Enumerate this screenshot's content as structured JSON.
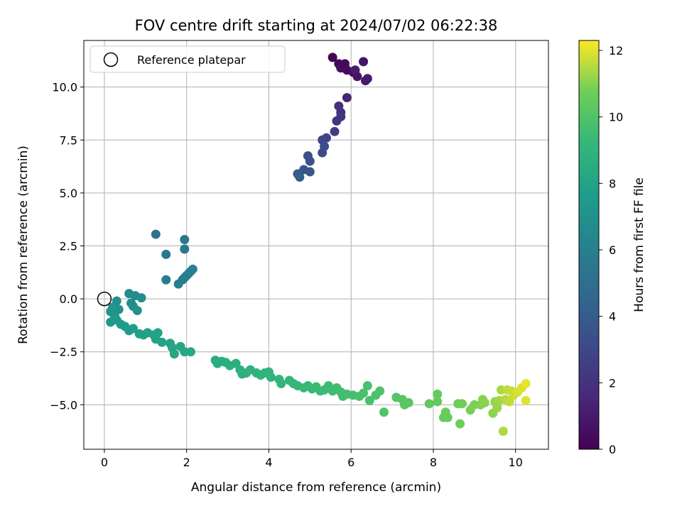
{
  "chart_data": {
    "type": "scatter",
    "title": "FOV centre drift starting at 2024/07/02 06:22:38",
    "xlabel": "Angular distance from reference (arcmin)",
    "ylabel": "Rotation from reference (arcmin)",
    "xlim": [
      -0.5,
      10.8
    ],
    "ylim": [
      -7.1,
      12.2
    ],
    "x_ticks": [
      0,
      2,
      4,
      6,
      8,
      10
    ],
    "y_ticks": [
      -5.0,
      -2.5,
      0.0,
      2.5,
      5.0,
      7.5,
      10.0
    ],
    "x_tick_labels": [
      "0",
      "2",
      "4",
      "6",
      "8",
      "10"
    ],
    "y_tick_labels": [
      "−5.0",
      "−2.5",
      "0.0",
      "2.5",
      "5.0",
      "7.5",
      "10.0"
    ],
    "grid": true,
    "legend": {
      "position": "top-left",
      "entries": [
        "Reference platepar"
      ]
    },
    "reference_point": {
      "x": 0,
      "y": 0
    },
    "colorbar": {
      "label": "Hours from first FF file",
      "colormap": "viridis",
      "range": [
        0,
        12.3
      ],
      "ticks": [
        0,
        2,
        4,
        6,
        8,
        10,
        12
      ],
      "tick_labels": [
        "0",
        "2",
        "4",
        "6",
        "8",
        "10",
        "12"
      ]
    },
    "points": [
      {
        "x": 5.55,
        "y": 11.4,
        "t": 0.1
      },
      {
        "x": 5.7,
        "y": 11.1,
        "t": 0.2
      },
      {
        "x": 5.8,
        "y": 11.0,
        "t": 0.3
      },
      {
        "x": 5.9,
        "y": 10.8,
        "t": 0.4
      },
      {
        "x": 5.75,
        "y": 10.9,
        "t": 0.5
      },
      {
        "x": 6.05,
        "y": 10.7,
        "t": 0.6
      },
      {
        "x": 6.15,
        "y": 10.5,
        "t": 0.7
      },
      {
        "x": 6.3,
        "y": 11.2,
        "t": 0.8
      },
      {
        "x": 6.35,
        "y": 10.3,
        "t": 0.9
      },
      {
        "x": 6.4,
        "y": 10.4,
        "t": 1.0
      },
      {
        "x": 6.1,
        "y": 10.8,
        "t": 1.0
      },
      {
        "x": 5.85,
        "y": 11.1,
        "t": 0.3
      },
      {
        "x": 5.9,
        "y": 9.5,
        "t": 1.4
      },
      {
        "x": 5.75,
        "y": 8.8,
        "t": 1.8
      },
      {
        "x": 5.7,
        "y": 9.1,
        "t": 1.9
      },
      {
        "x": 5.65,
        "y": 8.4,
        "t": 2.2
      },
      {
        "x": 5.6,
        "y": 7.9,
        "t": 2.5
      },
      {
        "x": 5.75,
        "y": 8.6,
        "t": 2.1
      },
      {
        "x": 5.4,
        "y": 7.6,
        "t": 2.8
      },
      {
        "x": 5.3,
        "y": 7.5,
        "t": 3.0
      },
      {
        "x": 5.35,
        "y": 7.2,
        "t": 3.1
      },
      {
        "x": 5.3,
        "y": 6.9,
        "t": 3.2
      },
      {
        "x": 5.0,
        "y": 6.5,
        "t": 3.5
      },
      {
        "x": 4.95,
        "y": 6.75,
        "t": 3.4
      },
      {
        "x": 4.85,
        "y": 6.1,
        "t": 3.7
      },
      {
        "x": 5.0,
        "y": 6.0,
        "t": 3.8
      },
      {
        "x": 4.7,
        "y": 5.9,
        "t": 4.0
      },
      {
        "x": 4.75,
        "y": 5.75,
        "t": 4.1
      },
      {
        "x": 1.25,
        "y": 3.05,
        "t": 5.2
      },
      {
        "x": 1.5,
        "y": 2.1,
        "t": 5.4
      },
      {
        "x": 1.95,
        "y": 2.8,
        "t": 5.5
      },
      {
        "x": 1.95,
        "y": 2.35,
        "t": 5.6
      },
      {
        "x": 1.5,
        "y": 0.9,
        "t": 5.8
      },
      {
        "x": 1.8,
        "y": 0.7,
        "t": 5.9
      },
      {
        "x": 1.9,
        "y": 0.9,
        "t": 6.0
      },
      {
        "x": 2.0,
        "y": 1.1,
        "t": 6.1
      },
      {
        "x": 2.1,
        "y": 1.3,
        "t": 6.2
      },
      {
        "x": 2.15,
        "y": 1.4,
        "t": 6.2
      },
      {
        "x": 2.05,
        "y": 1.2,
        "t": 6.1
      },
      {
        "x": 1.95,
        "y": 1.0,
        "t": 6.0
      },
      {
        "x": 0.6,
        "y": 0.25,
        "t": 6.6
      },
      {
        "x": 0.75,
        "y": 0.15,
        "t": 6.7
      },
      {
        "x": 0.9,
        "y": 0.05,
        "t": 6.8
      },
      {
        "x": 0.7,
        "y": -0.35,
        "t": 6.8
      },
      {
        "x": 0.8,
        "y": -0.55,
        "t": 6.9
      },
      {
        "x": 0.65,
        "y": -0.2,
        "t": 6.75
      },
      {
        "x": 0.3,
        "y": -0.1,
        "t": 7.0
      },
      {
        "x": 0.35,
        "y": -0.5,
        "t": 7.1
      },
      {
        "x": 0.15,
        "y": -0.6,
        "t": 7.2
      },
      {
        "x": 0.25,
        "y": -0.8,
        "t": 7.3
      },
      {
        "x": 0.3,
        "y": -1.0,
        "t": 7.4
      },
      {
        "x": 0.15,
        "y": -1.1,
        "t": 7.4
      },
      {
        "x": 0.2,
        "y": -0.4,
        "t": 7.15
      },
      {
        "x": 0.4,
        "y": -1.2,
        "t": 7.5
      },
      {
        "x": 0.5,
        "y": -1.3,
        "t": 7.6
      },
      {
        "x": 0.6,
        "y": -1.5,
        "t": 7.7
      },
      {
        "x": 0.7,
        "y": -1.4,
        "t": 7.75
      },
      {
        "x": 0.85,
        "y": -1.65,
        "t": 7.8
      },
      {
        "x": 0.95,
        "y": -1.7,
        "t": 7.85
      },
      {
        "x": 1.05,
        "y": -1.6,
        "t": 7.9
      },
      {
        "x": 1.2,
        "y": -1.7,
        "t": 7.95
      },
      {
        "x": 1.25,
        "y": -1.9,
        "t": 8.0
      },
      {
        "x": 1.3,
        "y": -1.6,
        "t": 8.0
      },
      {
        "x": 1.4,
        "y": -2.05,
        "t": 8.05
      },
      {
        "x": 1.6,
        "y": -2.1,
        "t": 8.1
      },
      {
        "x": 1.65,
        "y": -2.3,
        "t": 8.1
      },
      {
        "x": 1.7,
        "y": -2.6,
        "t": 8.15
      },
      {
        "x": 1.85,
        "y": -2.25,
        "t": 8.2
      },
      {
        "x": 1.95,
        "y": -2.5,
        "t": 8.25
      },
      {
        "x": 2.1,
        "y": -2.5,
        "t": 8.3
      },
      {
        "x": 2.7,
        "y": -2.9,
        "t": 8.5
      },
      {
        "x": 2.75,
        "y": -3.05,
        "t": 8.55
      },
      {
        "x": 2.85,
        "y": -2.95,
        "t": 8.6
      },
      {
        "x": 2.95,
        "y": -3.0,
        "t": 8.6
      },
      {
        "x": 3.05,
        "y": -3.15,
        "t": 8.65
      },
      {
        "x": 3.2,
        "y": -3.05,
        "t": 8.7
      },
      {
        "x": 3.3,
        "y": -3.35,
        "t": 8.75
      },
      {
        "x": 3.35,
        "y": -3.55,
        "t": 8.8
      },
      {
        "x": 3.45,
        "y": -3.5,
        "t": 8.8
      },
      {
        "x": 3.55,
        "y": -3.35,
        "t": 8.85
      },
      {
        "x": 3.7,
        "y": -3.5,
        "t": 8.9
      },
      {
        "x": 3.8,
        "y": -3.6,
        "t": 8.9
      },
      {
        "x": 3.9,
        "y": -3.5,
        "t": 8.95
      },
      {
        "x": 4.0,
        "y": -3.45,
        "t": 9.0
      },
      {
        "x": 4.05,
        "y": -3.7,
        "t": 9.0
      },
      {
        "x": 4.25,
        "y": -3.8,
        "t": 9.05
      },
      {
        "x": 4.3,
        "y": -4.0,
        "t": 9.1
      },
      {
        "x": 4.5,
        "y": -3.85,
        "t": 9.15
      },
      {
        "x": 4.6,
        "y": -4.0,
        "t": 9.2
      },
      {
        "x": 4.7,
        "y": -4.1,
        "t": 9.25
      },
      {
        "x": 4.85,
        "y": -4.2,
        "t": 9.3
      },
      {
        "x": 4.95,
        "y": -4.1,
        "t": 9.3
      },
      {
        "x": 5.05,
        "y": -4.25,
        "t": 9.35
      },
      {
        "x": 5.15,
        "y": -4.15,
        "t": 9.4
      },
      {
        "x": 5.25,
        "y": -4.35,
        "t": 9.4
      },
      {
        "x": 5.35,
        "y": -4.3,
        "t": 9.45
      },
      {
        "x": 5.45,
        "y": -4.1,
        "t": 9.5
      },
      {
        "x": 5.55,
        "y": -4.35,
        "t": 9.5
      },
      {
        "x": 5.65,
        "y": -4.2,
        "t": 9.55
      },
      {
        "x": 5.75,
        "y": -4.4,
        "t": 9.6
      },
      {
        "x": 5.8,
        "y": -4.6,
        "t": 9.6
      },
      {
        "x": 5.9,
        "y": -4.5,
        "t": 9.65
      },
      {
        "x": 6.05,
        "y": -4.55,
        "t": 9.7
      },
      {
        "x": 6.2,
        "y": -4.6,
        "t": 9.75
      },
      {
        "x": 6.3,
        "y": -4.45,
        "t": 9.8
      },
      {
        "x": 6.4,
        "y": -4.1,
        "t": 9.8
      },
      {
        "x": 6.45,
        "y": -4.8,
        "t": 9.85
      },
      {
        "x": 6.6,
        "y": -4.55,
        "t": 9.9
      },
      {
        "x": 6.7,
        "y": -4.35,
        "t": 9.95
      },
      {
        "x": 6.8,
        "y": -5.35,
        "t": 10.0
      },
      {
        "x": 7.1,
        "y": -4.65,
        "t": 10.1
      },
      {
        "x": 7.25,
        "y": -4.75,
        "t": 10.15
      },
      {
        "x": 7.3,
        "y": -5.0,
        "t": 10.2
      },
      {
        "x": 7.4,
        "y": -4.9,
        "t": 10.25
      },
      {
        "x": 7.9,
        "y": -4.95,
        "t": 10.4
      },
      {
        "x": 8.1,
        "y": -4.5,
        "t": 10.5
      },
      {
        "x": 8.1,
        "y": -4.85,
        "t": 10.5
      },
      {
        "x": 8.25,
        "y": -5.6,
        "t": 10.55
      },
      {
        "x": 8.3,
        "y": -5.35,
        "t": 10.6
      },
      {
        "x": 8.35,
        "y": -5.6,
        "t": 10.6
      },
      {
        "x": 8.6,
        "y": -4.95,
        "t": 10.7
      },
      {
        "x": 8.65,
        "y": -5.9,
        "t": 10.75
      },
      {
        "x": 8.7,
        "y": -4.95,
        "t": 10.75
      },
      {
        "x": 8.9,
        "y": -5.25,
        "t": 10.85
      },
      {
        "x": 9.0,
        "y": -5.0,
        "t": 10.9
      },
      {
        "x": 9.15,
        "y": -5.0,
        "t": 10.95
      },
      {
        "x": 9.2,
        "y": -4.75,
        "t": 11.0
      },
      {
        "x": 9.25,
        "y": -4.9,
        "t": 11.05
      },
      {
        "x": 9.45,
        "y": -5.4,
        "t": 11.1
      },
      {
        "x": 9.5,
        "y": -4.85,
        "t": 11.15
      },
      {
        "x": 9.55,
        "y": -5.15,
        "t": 11.2
      },
      {
        "x": 9.6,
        "y": -4.8,
        "t": 11.3
      },
      {
        "x": 9.65,
        "y": -4.3,
        "t": 11.4
      },
      {
        "x": 9.7,
        "y": -6.25,
        "t": 11.45
      },
      {
        "x": 9.75,
        "y": -4.75,
        "t": 11.5
      },
      {
        "x": 9.8,
        "y": -4.3,
        "t": 11.6
      },
      {
        "x": 9.9,
        "y": -4.35,
        "t": 11.7
      },
      {
        "x": 9.95,
        "y": -4.55,
        "t": 11.75
      },
      {
        "x": 10.05,
        "y": -4.4,
        "t": 11.85
      },
      {
        "x": 10.15,
        "y": -4.2,
        "t": 11.95
      },
      {
        "x": 10.25,
        "y": -4.0,
        "t": 12.1
      },
      {
        "x": 10.25,
        "y": -4.8,
        "t": 12.0
      },
      {
        "x": 9.85,
        "y": -4.85,
        "t": 11.65
      }
    ]
  }
}
